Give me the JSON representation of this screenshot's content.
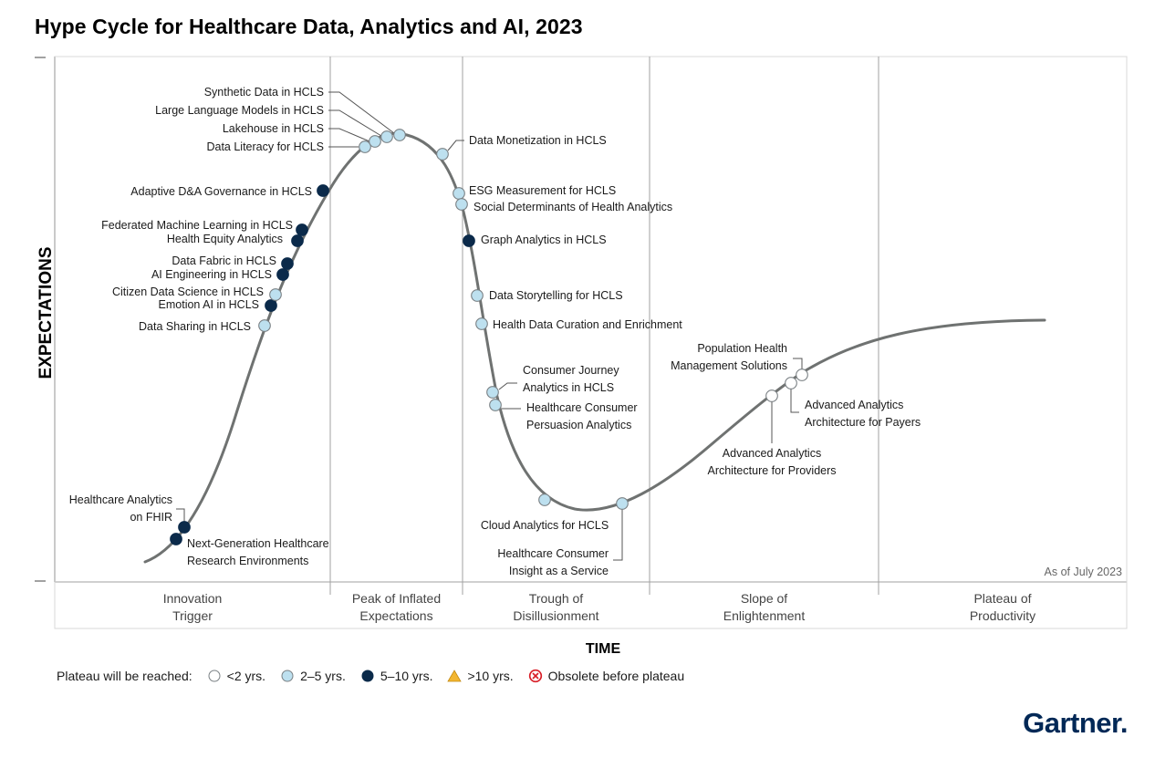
{
  "title": "Hype Cycle for Healthcare Data, Analytics and AI, 2023",
  "as_of": "As of July 2023",
  "brand": "Gartner",
  "brand_dot": ".",
  "chart_data": {
    "type": "hype-cycle",
    "ylabel": "EXPECTATIONS",
    "xlabel": "TIME",
    "phases": [
      {
        "line1": "Innovation",
        "line2": "Trigger"
      },
      {
        "line1": "Peak of Inflated",
        "line2": "Expectations"
      },
      {
        "line1": "Trough of",
        "line2": "Disillusionment"
      },
      {
        "line1": "Slope of",
        "line2": "Enlightenment"
      },
      {
        "line1": "Plateau of",
        "line2": "Productivity"
      }
    ],
    "legend": {
      "prefix": "Plateau will be reached:",
      "items": [
        {
          "key": "lt2",
          "label": "<2 yrs.",
          "color": "#ffffff"
        },
        {
          "key": "2to5",
          "label": "2–5 yrs.",
          "color": "#bde0ef"
        },
        {
          "key": "5to10",
          "label": "5–10 yrs.",
          "color": "#0b2a4a"
        },
        {
          "key": "gt10",
          "label": ">10 yrs.",
          "color": "#f3b630"
        },
        {
          "key": "obsolete",
          "label": "Obsolete before plateau",
          "color": "#d81e27"
        }
      ]
    },
    "technologies": [
      {
        "name": "Next-Generation Healthcare Research Environments",
        "lines": [
          "Next-Generation Healthcare",
          "Research Environments"
        ],
        "phase": "Innovation Trigger",
        "plateau": "5to10"
      },
      {
        "name": "Healthcare Analytics on FHIR",
        "lines": [
          "Healthcare Analytics",
          "on FHIR"
        ],
        "phase": "Innovation Trigger",
        "plateau": "5to10"
      },
      {
        "name": "Data Sharing in HCLS",
        "lines": [
          "Data Sharing in HCLS"
        ],
        "phase": "Innovation Trigger",
        "plateau": "2to5"
      },
      {
        "name": "Emotion AI in HCLS",
        "lines": [
          "Emotion AI in HCLS"
        ],
        "phase": "Innovation Trigger",
        "plateau": "5to10"
      },
      {
        "name": "Citizen Data Science in HCLS",
        "lines": [
          "Citizen Data Science in HCLS"
        ],
        "phase": "Innovation Trigger",
        "plateau": "2to5"
      },
      {
        "name": "AI Engineering in HCLS",
        "lines": [
          "AI Engineering in HCLS"
        ],
        "phase": "Innovation Trigger",
        "plateau": "5to10"
      },
      {
        "name": "Data Fabric in HCLS",
        "lines": [
          "Data Fabric in HCLS"
        ],
        "phase": "Innovation Trigger",
        "plateau": "5to10"
      },
      {
        "name": "Health Equity Analytics",
        "lines": [
          "Health Equity Analytics"
        ],
        "phase": "Innovation Trigger",
        "plateau": "5to10"
      },
      {
        "name": "Federated Machine Learning in HCLS",
        "lines": [
          "Federated Machine Learning in HCLS"
        ],
        "phase": "Innovation Trigger",
        "plateau": "5to10"
      },
      {
        "name": "Adaptive D&A Governance in HCLS",
        "lines": [
          "Adaptive D&A Governance in HCLS"
        ],
        "phase": "Innovation Trigger",
        "plateau": "5to10"
      },
      {
        "name": "Data Literacy for HCLS",
        "lines": [
          "Data Literacy for HCLS"
        ],
        "phase": "Peak of Inflated Expectations",
        "plateau": "2to5"
      },
      {
        "name": "Lakehouse in HCLS",
        "lines": [
          "Lakehouse in HCLS"
        ],
        "phase": "Peak of Inflated Expectations",
        "plateau": "2to5"
      },
      {
        "name": "Large Language Models in HCLS",
        "lines": [
          "Large Language Models in HCLS"
        ],
        "phase": "Peak of Inflated Expectations",
        "plateau": "2to5"
      },
      {
        "name": "Synthetic Data in HCLS",
        "lines": [
          "Synthetic Data in HCLS"
        ],
        "phase": "Peak of Inflated Expectations",
        "plateau": "2to5"
      },
      {
        "name": "Data Monetization in HCLS",
        "lines": [
          "Data Monetization in HCLS"
        ],
        "phase": "Peak of Inflated Expectations",
        "plateau": "2to5"
      },
      {
        "name": "ESG Measurement for HCLS",
        "lines": [
          "ESG Measurement for HCLS"
        ],
        "phase": "Trough of Disillusionment",
        "plateau": "2to5"
      },
      {
        "name": "Social Determinants of Health Analytics",
        "lines": [
          "Social Determinants of Health Analytics"
        ],
        "phase": "Trough of Disillusionment",
        "plateau": "2to5"
      },
      {
        "name": "Graph Analytics in HCLS",
        "lines": [
          "Graph Analytics in HCLS"
        ],
        "phase": "Trough of Disillusionment",
        "plateau": "5to10"
      },
      {
        "name": "Data Storytelling for HCLS",
        "lines": [
          "Data Storytelling for HCLS"
        ],
        "phase": "Trough of Disillusionment",
        "plateau": "2to5"
      },
      {
        "name": "Health Data Curation and Enrichment",
        "lines": [
          "Health Data Curation and Enrichment"
        ],
        "phase": "Trough of Disillusionment",
        "plateau": "2to5"
      },
      {
        "name": "Consumer Journey Analytics in HCLS",
        "lines": [
          "Consumer Journey",
          "Analytics in HCLS"
        ],
        "phase": "Trough of Disillusionment",
        "plateau": "2to5"
      },
      {
        "name": "Healthcare Consumer Persuasion Analytics",
        "lines": [
          "Healthcare Consumer",
          "Persuasion Analytics"
        ],
        "phase": "Trough of Disillusionment",
        "plateau": "2to5"
      },
      {
        "name": "Cloud Analytics for HCLS",
        "lines": [
          "Cloud Analytics for HCLS"
        ],
        "phase": "Trough of Disillusionment",
        "plateau": "2to5"
      },
      {
        "name": "Healthcare Consumer Insight as a Service",
        "lines": [
          "Healthcare Consumer",
          "Insight as a Service"
        ],
        "phase": "Trough of Disillusionment",
        "plateau": "2to5"
      },
      {
        "name": "Advanced Analytics Architecture for Providers",
        "lines": [
          "Advanced Analytics",
          "Architecture for Providers"
        ],
        "phase": "Slope of Enlightenment",
        "plateau": "lt2"
      },
      {
        "name": "Advanced Analytics Architecture for Payers",
        "lines": [
          "Advanced Analytics",
          "Architecture for Payers"
        ],
        "phase": "Slope of Enlightenment",
        "plateau": "lt2"
      },
      {
        "name": "Population Health Management Solutions",
        "lines": [
          "Population Health",
          "Management Solutions"
        ],
        "phase": "Slope of Enlightenment",
        "plateau": "lt2"
      }
    ]
  }
}
